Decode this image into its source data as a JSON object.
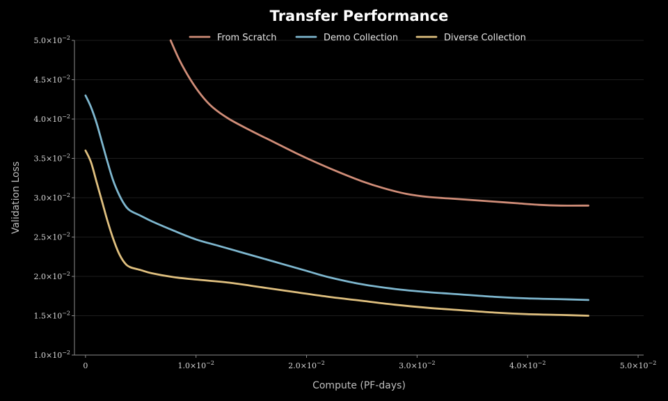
{
  "chart_data": {
    "type": "line",
    "title": "Transfer Performance",
    "xlabel": "Compute (PF-days)",
    "ylabel": "Validation Loss",
    "xlim": [
      -0.001,
      0.0505
    ],
    "ylim": [
      0.01,
      0.05
    ],
    "x_ticks": [
      {
        "value": 0,
        "mantissa": "0",
        "exponent": ""
      },
      {
        "value": 0.01,
        "mantissa": "1.0×10",
        "exponent": "−2"
      },
      {
        "value": 0.02,
        "mantissa": "2.0×10",
        "exponent": "−2"
      },
      {
        "value": 0.03,
        "mantissa": "3.0×10",
        "exponent": "−2"
      },
      {
        "value": 0.04,
        "mantissa": "4.0×10",
        "exponent": "−2"
      },
      {
        "value": 0.05,
        "mantissa": "5.0×10",
        "exponent": "−2"
      }
    ],
    "y_ticks": [
      {
        "value": 0.01,
        "mantissa": "1.0×10",
        "exponent": "−2"
      },
      {
        "value": 0.015,
        "mantissa": "1.5×10",
        "exponent": "−2"
      },
      {
        "value": 0.02,
        "mantissa": "2.0×10",
        "exponent": "−2"
      },
      {
        "value": 0.025,
        "mantissa": "2.5×10",
        "exponent": "−2"
      },
      {
        "value": 0.03,
        "mantissa": "3.0×10",
        "exponent": "−2"
      },
      {
        "value": 0.035,
        "mantissa": "3.5×10",
        "exponent": "−2"
      },
      {
        "value": 0.04,
        "mantissa": "4.0×10",
        "exponent": "−2"
      },
      {
        "value": 0.045,
        "mantissa": "4.5×10",
        "exponent": "−2"
      },
      {
        "value": 0.05,
        "mantissa": "5.0×10",
        "exponent": "−2"
      }
    ],
    "grid": true,
    "legend_position": "top-center",
    "series": [
      {
        "name": "From Scratch",
        "color": "#d08d78",
        "points": [
          [
            0.0077,
            0.05
          ],
          [
            0.0085,
            0.0475
          ],
          [
            0.0095,
            0.045
          ],
          [
            0.0105,
            0.043
          ],
          [
            0.0115,
            0.0415
          ],
          [
            0.013,
            0.04
          ],
          [
            0.015,
            0.0385
          ],
          [
            0.017,
            0.0371
          ],
          [
            0.019,
            0.0357
          ],
          [
            0.021,
            0.0344
          ],
          [
            0.023,
            0.0332
          ],
          [
            0.025,
            0.0321
          ],
          [
            0.027,
            0.0312
          ],
          [
            0.029,
            0.0305
          ],
          [
            0.031,
            0.0301
          ],
          [
            0.033,
            0.0299
          ],
          [
            0.035,
            0.0297
          ],
          [
            0.037,
            0.0295
          ],
          [
            0.039,
            0.0293
          ],
          [
            0.041,
            0.0291
          ],
          [
            0.043,
            0.029
          ],
          [
            0.0455,
            0.029
          ]
        ]
      },
      {
        "name": "Demo Collection",
        "color": "#7eb7cf",
        "points": [
          [
            0.0,
            0.043
          ],
          [
            0.0005,
            0.0415
          ],
          [
            0.001,
            0.0395
          ],
          [
            0.0015,
            0.037
          ],
          [
            0.002,
            0.0345
          ],
          [
            0.0025,
            0.0322
          ],
          [
            0.003,
            0.0305
          ],
          [
            0.0035,
            0.0292
          ],
          [
            0.004,
            0.0284
          ],
          [
            0.005,
            0.0277
          ],
          [
            0.006,
            0.027
          ],
          [
            0.008,
            0.0258
          ],
          [
            0.01,
            0.0247
          ],
          [
            0.012,
            0.0239
          ],
          [
            0.014,
            0.0231
          ],
          [
            0.016,
            0.0223
          ],
          [
            0.018,
            0.0215
          ],
          [
            0.02,
            0.0207
          ],
          [
            0.022,
            0.0199
          ],
          [
            0.025,
            0.019
          ],
          [
            0.028,
            0.0184
          ],
          [
            0.031,
            0.018
          ],
          [
            0.034,
            0.0177
          ],
          [
            0.037,
            0.0174
          ],
          [
            0.04,
            0.0172
          ],
          [
            0.043,
            0.0171
          ],
          [
            0.0455,
            0.017
          ]
        ]
      },
      {
        "name": "Diverse Collection",
        "color": "#e0c07f",
        "points": [
          [
            0.0,
            0.036
          ],
          [
            0.0005,
            0.0345
          ],
          [
            0.001,
            0.032
          ],
          [
            0.0015,
            0.0295
          ],
          [
            0.002,
            0.027
          ],
          [
            0.0025,
            0.0248
          ],
          [
            0.003,
            0.023
          ],
          [
            0.0035,
            0.0218
          ],
          [
            0.004,
            0.0212
          ],
          [
            0.005,
            0.0208
          ],
          [
            0.006,
            0.0204
          ],
          [
            0.008,
            0.0199
          ],
          [
            0.01,
            0.0196
          ],
          [
            0.013,
            0.0192
          ],
          [
            0.016,
            0.0186
          ],
          [
            0.019,
            0.018
          ],
          [
            0.022,
            0.0174
          ],
          [
            0.025,
            0.0169
          ],
          [
            0.028,
            0.0164
          ],
          [
            0.031,
            0.016
          ],
          [
            0.034,
            0.0157
          ],
          [
            0.037,
            0.0154
          ],
          [
            0.04,
            0.0152
          ],
          [
            0.043,
            0.0151
          ],
          [
            0.0455,
            0.015
          ]
        ]
      }
    ]
  }
}
